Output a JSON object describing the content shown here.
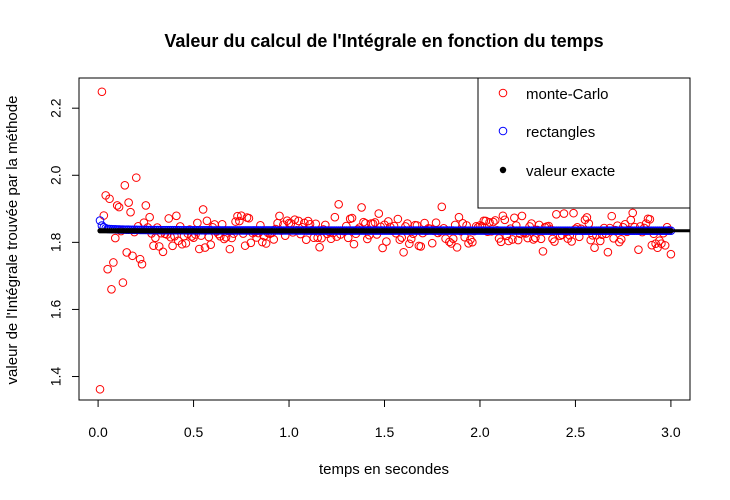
{
  "chart_data": {
    "type": "scatter",
    "title": "Valeur du calcul de l'Intégrale en fonction du temps",
    "xlabel": "temps en secondes",
    "ylabel": "valeur de l'Intégrale trouvée par la méthode",
    "xlim": [
      -0.1,
      3.1
    ],
    "ylim": [
      1.33,
      2.29
    ],
    "xticks": [
      "0.0",
      "0.5",
      "1.0",
      "1.5",
      "2.0",
      "2.5",
      "3.0"
    ],
    "yticks": [
      "1.4",
      "1.6",
      "1.8",
      "2.0",
      "2.2"
    ],
    "legend_position": "top-right",
    "exact_value": 1.8346,
    "x_range": [
      0.01,
      3.0
    ],
    "n_points": 300,
    "series": [
      {
        "name": "monte-Carlo",
        "marker": "open-circle",
        "color": "#ff0000",
        "description_values": "scattered around the exact value, spread narrowing with time",
        "notable_points": [
          {
            "x": 0.01,
            "y": 1.362
          },
          {
            "x": 0.02,
            "y": 2.249
          },
          {
            "x": 0.03,
            "y": 1.88
          },
          {
            "x": 0.04,
            "y": 1.94
          },
          {
            "x": 0.05,
            "y": 1.72
          },
          {
            "x": 0.06,
            "y": 1.93
          },
          {
            "x": 0.07,
            "y": 1.66
          },
          {
            "x": 0.08,
            "y": 1.74
          },
          {
            "x": 0.1,
            "y": 1.91
          },
          {
            "x": 0.11,
            "y": 1.905
          },
          {
            "x": 0.13,
            "y": 1.68
          },
          {
            "x": 0.14,
            "y": 1.97
          },
          {
            "x": 0.15,
            "y": 1.77
          },
          {
            "x": 0.17,
            "y": 1.89
          },
          {
            "x": 0.18,
            "y": 1.76
          },
          {
            "x": 0.2,
            "y": 1.993
          },
          {
            "x": 0.22,
            "y": 1.75
          },
          {
            "x": 0.23,
            "y": 1.735
          },
          {
            "x": 0.25,
            "y": 1.91
          },
          {
            "x": 0.27,
            "y": 1.875
          }
        ]
      },
      {
        "name": "rectangles",
        "marker": "open-circle",
        "color": "#0000ff",
        "description_values": "converges quickly to the exact value",
        "notable_points": [
          {
            "x": 0.01,
            "y": 1.865
          },
          {
            "x": 0.02,
            "y": 1.85
          },
          {
            "x": 0.03,
            "y": 1.845
          },
          {
            "x": 0.04,
            "y": 1.842
          }
        ]
      },
      {
        "name": "valeur exacte",
        "marker": "filled-circle",
        "color": "#000000",
        "value": 1.8346
      }
    ]
  }
}
